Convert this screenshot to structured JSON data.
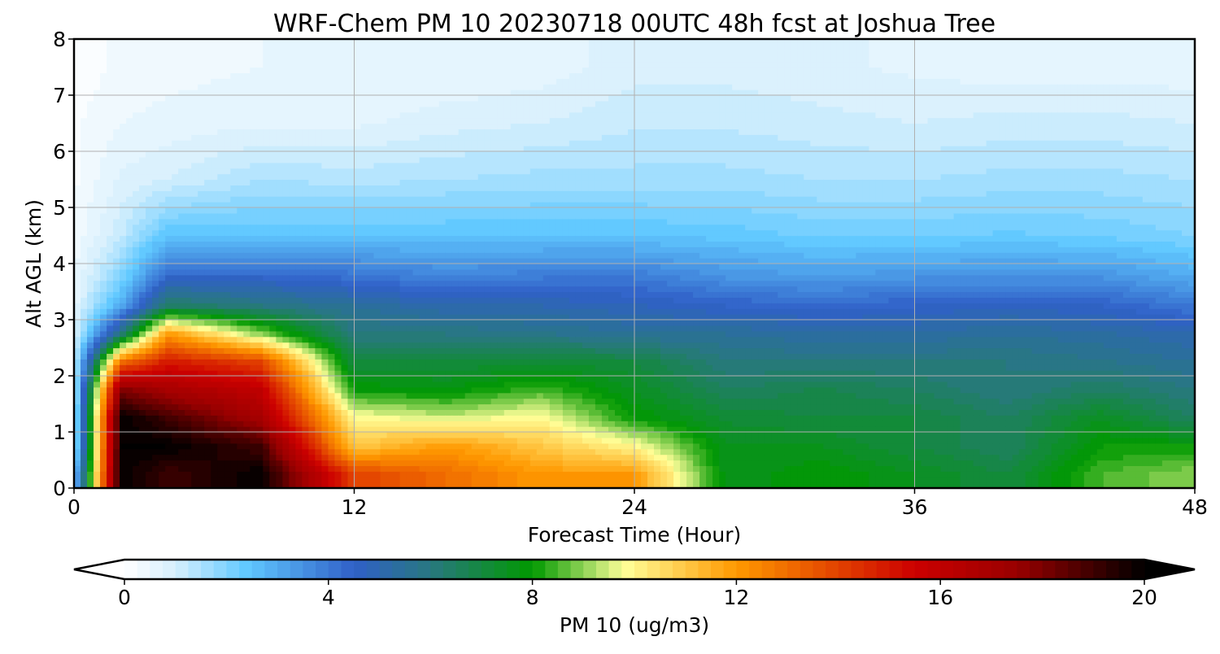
{
  "chart_data": {
    "type": "heatmap",
    "title": "WRF-Chem PM 10  20230718 00UTC 48h fcst at Joshua Tree",
    "xlabel": "Forecast Time (Hour)",
    "ylabel": "Alt AGL (km)",
    "xlim": [
      0,
      48
    ],
    "ylim": [
      0,
      8
    ],
    "xticks": [
      "0",
      "12",
      "24",
      "36",
      "48"
    ],
    "yticks": [
      "0",
      "1",
      "2",
      "3",
      "4",
      "5",
      "6",
      "7",
      "8"
    ],
    "grid": true,
    "x": [
      0,
      2,
      4,
      8,
      12,
      16,
      20,
      24,
      28,
      32,
      36,
      40,
      44,
      48
    ],
    "y": [
      0.25,
      0.75,
      1.25,
      1.75,
      2.25,
      2.75,
      3.25,
      3.75,
      4.5,
      5.5,
      6.5,
      7.5
    ],
    "z": [
      [
        2,
        20,
        19,
        20,
        14,
        13,
        12,
        12,
        7.5,
        8,
        7.5,
        7,
        8.5,
        9
      ],
      [
        1,
        20,
        20,
        19,
        11,
        12,
        11,
        10,
        7.5,
        7.5,
        7,
        6.5,
        8,
        8
      ],
      [
        1,
        20,
        19,
        17,
        10,
        9.5,
        10,
        8,
        7.2,
        7,
        7,
        6.5,
        7.5,
        6.5
      ],
      [
        1,
        18,
        17,
        16,
        8,
        7.8,
        8.5,
        7.5,
        6.5,
        6.8,
        6.5,
        6,
        6.5,
        6
      ],
      [
        1,
        13,
        15,
        14,
        7,
        7,
        7.2,
        7,
        6,
        6,
        6,
        6,
        5.8,
        5.5
      ],
      [
        0.8,
        6,
        12,
        9,
        6,
        6,
        5.8,
        5.5,
        5.5,
        5.3,
        5.3,
        5.5,
        5.3,
        5
      ],
      [
        0.6,
        3,
        6.5,
        6,
        5.5,
        5,
        5,
        4.8,
        4.5,
        4.3,
        4.5,
        4.7,
        4.5,
        4
      ],
      [
        0.5,
        2,
        4.5,
        4.5,
        4.2,
        3.8,
        4,
        4,
        3.5,
        3.3,
        3.5,
        3.5,
        3.5,
        3
      ],
      [
        0.3,
        1.2,
        2.5,
        2.5,
        2.5,
        2.5,
        2.5,
        2.5,
        2.4,
        2.2,
        2.2,
        2.3,
        2.2,
        2
      ],
      [
        0.2,
        0.8,
        1,
        1.5,
        1.4,
        1.5,
        1.6,
        1.6,
        1.6,
        1.5,
        1.5,
        1.6,
        1.6,
        1.5
      ],
      [
        0.2,
        0.5,
        0.6,
        0.7,
        0.7,
        0.9,
        1,
        1.2,
        1.2,
        1.1,
        1,
        1.1,
        1.1,
        1
      ],
      [
        0.1,
        0.3,
        0.4,
        0.5,
        0.5,
        0.5,
        0.6,
        0.9,
        0.9,
        0.8,
        0.7,
        0.6,
        0.6,
        0.6
      ]
    ],
    "colorbar": {
      "label": "PM 10  (ug/m3)",
      "range": [
        0,
        20
      ],
      "ticks": [
        "0",
        "4",
        "8",
        "12",
        "16",
        "20"
      ],
      "extend": "both"
    },
    "colormap": [
      [
        0,
        "#ffffff"
      ],
      [
        1,
        "#d6effd"
      ],
      [
        2.4,
        "#60c8ff"
      ],
      [
        4.5,
        "#3060c8"
      ],
      [
        6,
        "#287880"
      ],
      [
        8,
        "#009900"
      ],
      [
        9.8,
        "#ffff99"
      ],
      [
        12,
        "#ff9900"
      ],
      [
        15.5,
        "#cc0000"
      ],
      [
        17.5,
        "#990000"
      ],
      [
        20,
        "#000000"
      ]
    ]
  }
}
